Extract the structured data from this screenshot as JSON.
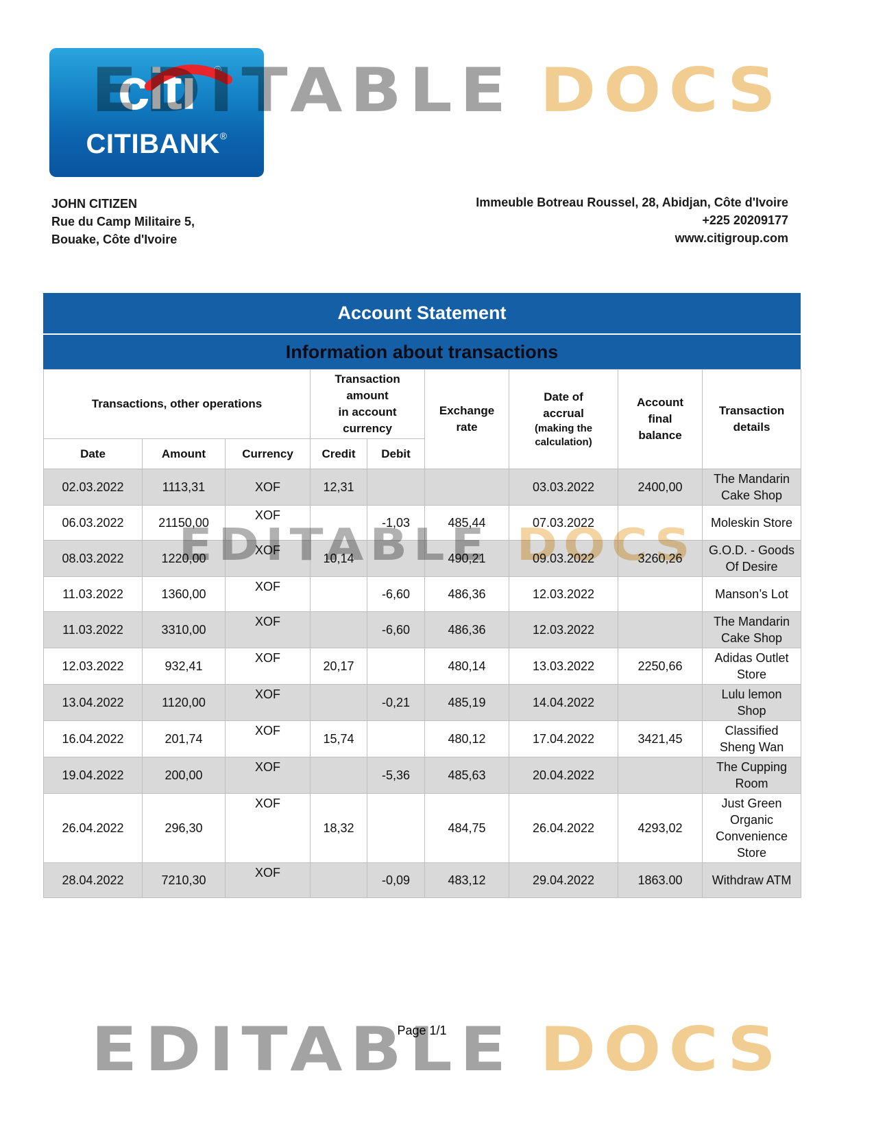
{
  "colors": {
    "band_blue": "#155fa7",
    "row_gray": "#d9d9d9",
    "logo_top": "#2aa4de",
    "logo_bottom": "#0a55a0",
    "arc_red": "#e8252a",
    "watermark_gray": "#a3a3a3",
    "watermark_orange": "#f2cd92"
  },
  "watermark": {
    "word1": "EDITABLE",
    "word2": "DOCS"
  },
  "logo": {
    "brand": "citi",
    "bank": "CITIBANK",
    "reg": "®"
  },
  "customer": {
    "name": "JOHN CITIZEN",
    "address_line1": "Rue du Camp Militaire 5,",
    "address_line2": "Bouake, Côte d'Ivoire"
  },
  "bank_contact": {
    "address": "Immeuble Botreau Roussel, 28, Abidjan, Côte d'Ivoire",
    "phone": "+225 20209177",
    "website": "www.citigroup.com"
  },
  "titles": {
    "main": "Account Statement",
    "sub": "Information about transactions"
  },
  "table": {
    "headers": {
      "group_transactions": "Transactions, other operations",
      "group_amount": "Transaction\namount\nin account\ncurrency",
      "exchange_rate": "Exchange\nrate",
      "date_accrual_main": "Date of\naccrual",
      "date_accrual_note": "(making the\ncalculation)",
      "account_balance": "Account\nfinal\nbalance",
      "details": "Transaction\ndetails",
      "date": "Date",
      "amount": "Amount",
      "currency": "Currency",
      "credit": "Credit",
      "debit": "Debit"
    },
    "rows": [
      {
        "date": "02.03.2022",
        "amount": "1113,31",
        "currency": "XOF",
        "credit": "12,31",
        "debit": "",
        "rate": "",
        "accrual_date": "03.03.2022",
        "balance": "2400,00",
        "details": "The Mandarin Cake Shop",
        "shaded": true,
        "currency_top": false
      },
      {
        "date": "06.03.2022",
        "amount": "21150,00",
        "currency": "XOF",
        "credit": "",
        "debit": "-1,03",
        "rate": "485,44",
        "accrual_date": "07.03.2022",
        "balance": "",
        "details": "Moleskin Store",
        "shaded": false,
        "currency_top": true
      },
      {
        "date": "08.03.2022",
        "amount": "1220,00",
        "currency": "XOF",
        "credit": "10,14",
        "debit": "",
        "rate": "490,21",
        "accrual_date": "09.03.2022",
        "balance": "3260,26",
        "details": "G.O.D. - Goods Of Desire",
        "shaded": true,
        "currency_top": true
      },
      {
        "date": "11.03.2022",
        "amount": "1360,00",
        "currency": "XOF",
        "credit": "",
        "debit": "-6,60",
        "rate": "486,36",
        "accrual_date": "12.03.2022",
        "balance": "",
        "details": "Manson’s Lot",
        "shaded": false,
        "currency_top": true
      },
      {
        "date": "11.03.2022",
        "amount": "3310,00",
        "currency": "XOF",
        "credit": "",
        "debit": "-6,60",
        "rate": "486,36",
        "accrual_date": "12.03.2022",
        "balance": "",
        "details": "The Mandarin Cake Shop",
        "shaded": true,
        "currency_top": true
      },
      {
        "date": "12.03.2022",
        "amount": "932,41",
        "currency": "XOF",
        "credit": "20,17",
        "debit": "",
        "rate": "480,14",
        "accrual_date": "13.03.2022",
        "balance": "2250,66",
        "details": "Adidas Outlet Store",
        "shaded": false,
        "currency_top": true
      },
      {
        "date": "13.04.2022",
        "amount": "1120,00",
        "currency": "XOF",
        "credit": "",
        "debit": "-0,21",
        "rate": "485,19",
        "accrual_date": "14.04.2022",
        "balance": "",
        "details": "Lulu lemon Shop",
        "shaded": true,
        "currency_top": true
      },
      {
        "date": "16.04.2022",
        "amount": "201,74",
        "currency": "XOF",
        "credit": "15,74",
        "debit": "",
        "rate": "480,12",
        "accrual_date": "17.04.2022",
        "balance": "3421,45",
        "details": "Classified Sheng Wan",
        "shaded": false,
        "currency_top": true
      },
      {
        "date": "19.04.2022",
        "amount": "200,00",
        "currency": "XOF",
        "credit": "",
        "debit": "-5,36",
        "rate": "485,63",
        "accrual_date": "20.04.2022",
        "balance": "",
        "details": "The Cupping Room",
        "shaded": true,
        "currency_top": true
      },
      {
        "date": "26.04.2022",
        "amount": "296,30",
        "currency": "XOF",
        "credit": "18,32",
        "debit": "",
        "rate": "484,75",
        "accrual_date": "26.04.2022",
        "balance": "4293,02",
        "details": "Just Green Organic Convenience Store",
        "shaded": false,
        "currency_top": true
      },
      {
        "date": "28.04.2022",
        "amount": "7210,30",
        "currency": "XOF",
        "credit": "",
        "debit": "-0,09",
        "rate": "483,12",
        "accrual_date": "29.04.2022",
        "balance": "1863.00",
        "details": "Withdraw ATM",
        "shaded": true,
        "currency_top": true
      }
    ]
  },
  "footer": {
    "page": "Page 1/1"
  }
}
